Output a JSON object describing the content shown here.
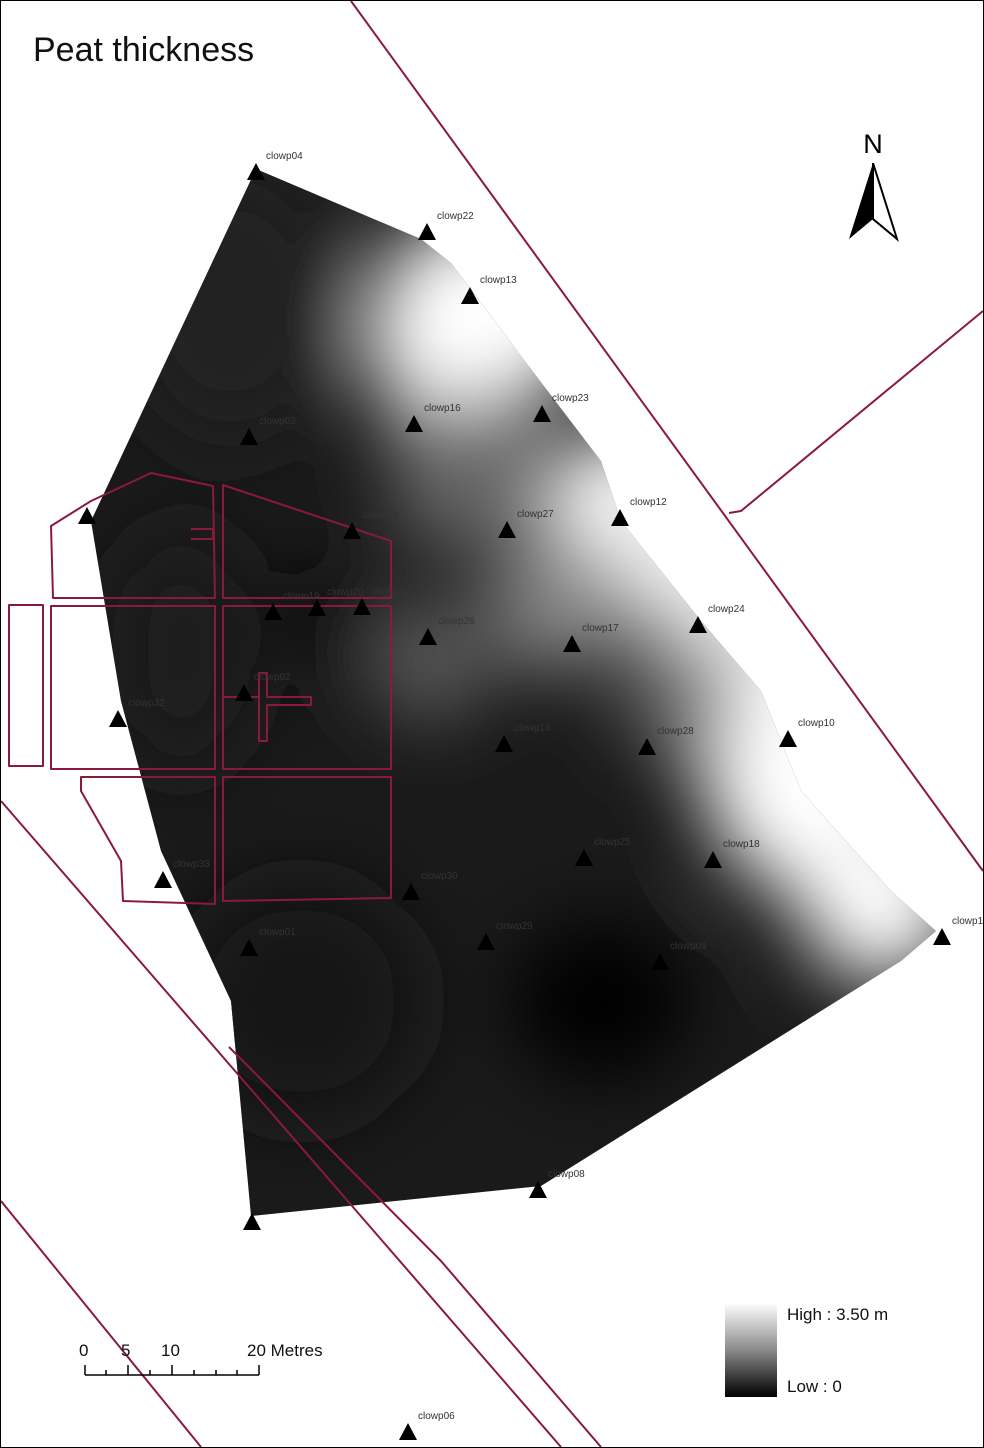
{
  "title": "Peat thickness",
  "north_arrow": {
    "letter": "N"
  },
  "legend": {
    "high_label": "High : 3.50 m",
    "low_label": "Low :  0",
    "high_color": "#ffffff",
    "low_color": "#000000"
  },
  "scalebar": {
    "ticks": [
      "0",
      "5",
      "10",
      "20 Metres"
    ]
  },
  "boundary_color": "#8b1a3a",
  "sites": [
    "clowp04",
    "clowp22",
    "clowp13",
    "clowp16",
    "clowp23",
    "clowp03",
    "clowp12",
    "clowp15",
    "clowp27",
    "clowp19",
    "clowp20",
    "clowp21",
    "clowp26",
    "clowp17",
    "clowp24",
    "clowp02",
    "clowp32",
    "clowp14",
    "clowp28",
    "clowp10",
    "clowp25",
    "clowp18",
    "clowp33",
    "clowp30",
    "clowp01",
    "clowp29",
    "clowp09",
    "clowp1",
    "clowp08",
    "clowp06"
  ]
}
